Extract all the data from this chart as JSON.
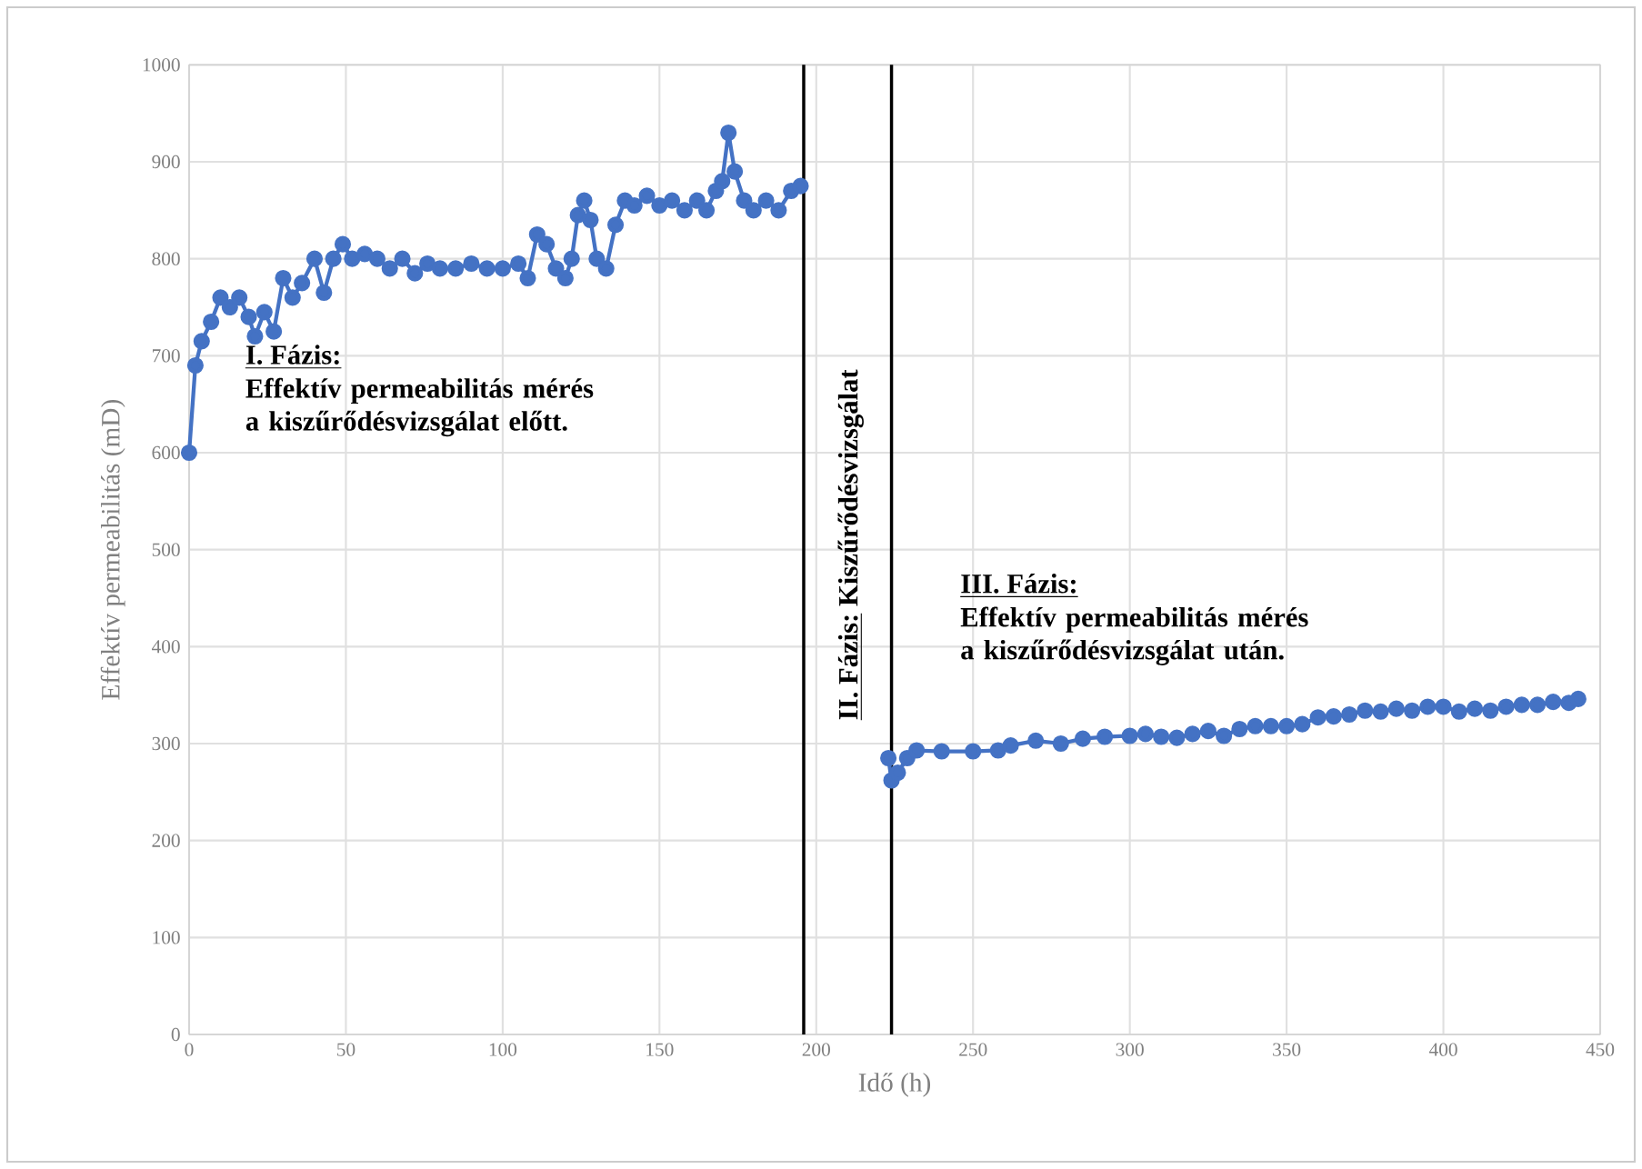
{
  "chart_data": {
    "type": "line",
    "xlabel": "Idő (h)",
    "ylabel": "Effektív permeabilitás (mD)",
    "xlim": [
      0,
      450
    ],
    "xticks": [
      0,
      50,
      100,
      150,
      200,
      250,
      300,
      350,
      400,
      450
    ],
    "ylim": [
      0,
      1000
    ],
    "yticks": [
      0,
      100,
      200,
      300,
      400,
      500,
      600,
      700,
      800,
      900,
      1000
    ],
    "grid": true,
    "marker": "circle",
    "line_style": "solid",
    "series": [
      {
        "color": "#4472c4",
        "x": [
          0,
          2,
          4,
          7,
          10,
          13,
          16,
          19,
          21,
          24,
          27,
          30,
          33,
          36,
          40,
          43,
          46,
          49,
          52,
          56,
          60,
          64,
          68,
          72,
          76,
          80,
          85,
          90,
          95,
          100,
          105,
          108,
          111,
          114,
          117,
          120,
          122,
          124,
          126,
          128,
          130,
          133,
          136,
          139,
          142,
          146,
          150,
          154,
          158,
          162,
          165,
          168,
          170,
          172,
          174,
          177,
          180,
          184,
          188,
          192,
          195
        ],
        "values": [
          600,
          690,
          715,
          735,
          760,
          750,
          760,
          740,
          720,
          745,
          725,
          780,
          760,
          775,
          800,
          765,
          800,
          815,
          800,
          805,
          800,
          790,
          800,
          785,
          795,
          790,
          790,
          795,
          790,
          790,
          795,
          780,
          825,
          815,
          790,
          780,
          800,
          845,
          860,
          840,
          800,
          790,
          835,
          860,
          855,
          865,
          855,
          860,
          850,
          860,
          850,
          870,
          880,
          930,
          890,
          860,
          850,
          860,
          850,
          870,
          875
        ]
      },
      {
        "color": "#4472c4",
        "x": [
          223,
          224,
          226,
          229,
          232,
          240,
          250,
          258,
          262,
          270,
          278,
          285,
          292,
          300,
          305,
          310,
          315,
          320,
          325,
          330,
          335,
          340,
          345,
          350,
          355,
          360,
          365,
          370,
          375,
          380,
          385,
          390,
          395,
          400,
          405,
          410,
          415,
          420,
          425,
          430,
          435,
          440,
          443
        ],
        "values": [
          285,
          262,
          270,
          285,
          293,
          292,
          292,
          293,
          298,
          303,
          300,
          305,
          307,
          308,
          310,
          307,
          306,
          310,
          313,
          308,
          315,
          318,
          318,
          318,
          320,
          327,
          328,
          330,
          334,
          333,
          336,
          334,
          338,
          338,
          333,
          336,
          334,
          338,
          340,
          340,
          343,
          342,
          346
        ]
      }
    ],
    "ref_lines": [
      {
        "axis": "x",
        "value": 196,
        "color": "#000000"
      },
      {
        "axis": "x",
        "value": 224,
        "color": "#000000"
      }
    ],
    "annotations": [
      "I. Fázis:",
      "Effektív permeabilitás mérés a kiszűrődésvizsgálat előtt.",
      "II. Fázis:",
      "Kiszűrődésvizsgálat",
      "III. Fázis:",
      "Effektív permeabilitás mérés a kiszűrődésvizsgálat után."
    ]
  }
}
